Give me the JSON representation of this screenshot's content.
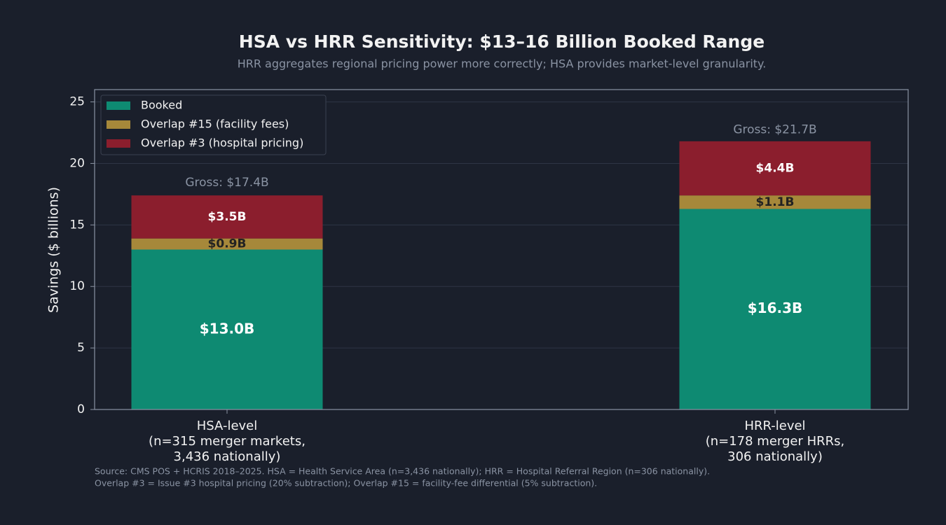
{
  "chart_data": {
    "type": "stacked_bar",
    "title": "HSA vs HRR Sensitivity: $13–16 Billion Booked Range",
    "subtitle": "HRR aggregates regional pricing power more correctly; HSA provides market-level granularity.",
    "y_label": "Savings ($ billions)",
    "categories": [
      [
        "HSA-level",
        "(n=315 merger markets,",
        "3,436 nationally)"
      ],
      [
        "HRR-level",
        "(n=178 merger HRRs,",
        "306 nationally)"
      ]
    ],
    "series": [
      {
        "name": "Booked",
        "color": "#0e8a72",
        "values": [
          13.0,
          16.3
        ],
        "value_labels": [
          "$13.0B",
          "$16.3B"
        ]
      },
      {
        "name": "Overlap #15 (facility fees)",
        "color": "#a6883a",
        "values": [
          0.9,
          1.1
        ],
        "value_labels": [
          "$0.9B",
          "$1.1B"
        ]
      },
      {
        "name": "Overlap #3 (hospital pricing)",
        "color": "#8b1e2d",
        "values": [
          3.5,
          4.4
        ],
        "value_labels": [
          "$3.5B",
          "$4.4B"
        ]
      }
    ],
    "totals": [
      17.4,
      21.7
    ],
    "total_labels": [
      "Gross: $17.4B",
      "Gross: $21.7B"
    ],
    "ylim": [
      0,
      26
    ],
    "yticks": [
      0,
      5,
      10,
      15,
      20,
      25
    ],
    "grid": true,
    "legend": "upper left",
    "notes": [
      "Source: CMS POS + HCRIS 2018–2025. HSA = Health Service Area (n=3,436 nationally); HRR = Hospital Referral Region (n=306 nationally).",
      "Overlap #3 = Issue #3 hospital pricing (20% subtraction); Overlap #15 = facility-fee differential (5% subtraction)."
    ]
  }
}
